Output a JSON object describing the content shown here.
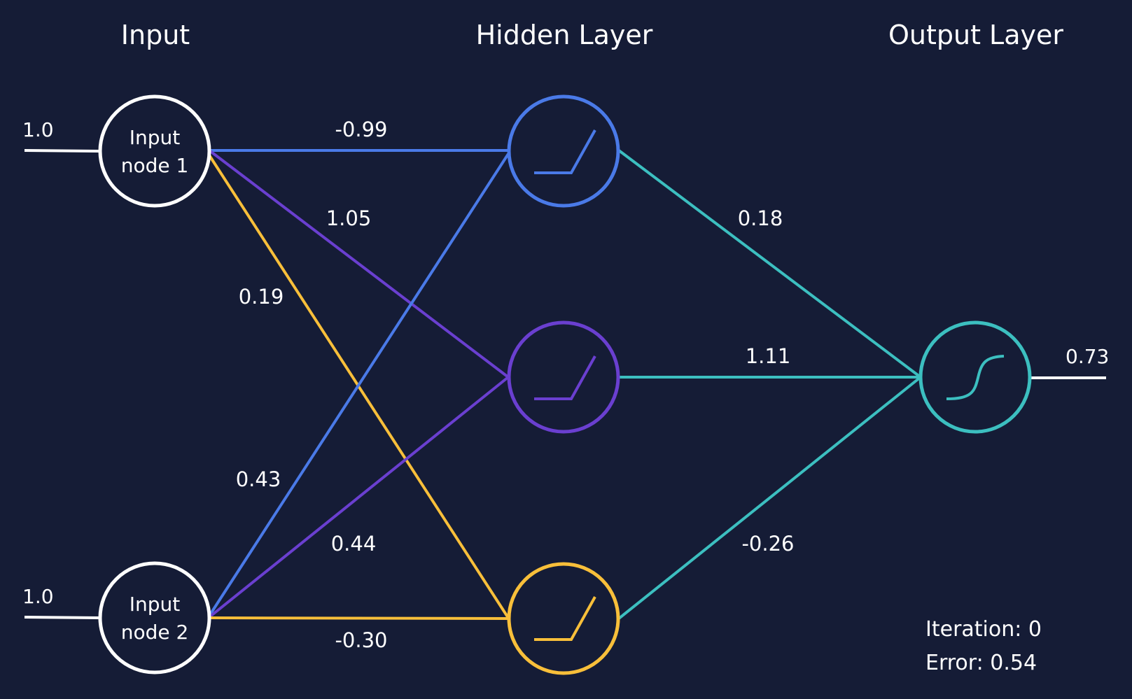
{
  "layers": {
    "input": "Input",
    "hidden": "Hidden Layer",
    "output": "Output Layer"
  },
  "input_nodes": [
    {
      "label_line1": "Input",
      "label_line2": "node 1",
      "value": "1.0"
    },
    {
      "label_line1": "Input",
      "label_line2": "node 2",
      "value": "1.0"
    }
  ],
  "hidden_nodes": [
    {
      "activation": "relu-icon",
      "color": "#4a7ae8"
    },
    {
      "activation": "relu-icon",
      "color": "#6a3fd0"
    },
    {
      "activation": "relu-icon",
      "color": "#f8bf3a"
    }
  ],
  "output_node": {
    "activation": "sigmoid-icon",
    "color": "#3cbfc0",
    "value": "0.73"
  },
  "weights": {
    "in1_h1": "-0.99",
    "in1_h2": "1.05",
    "in1_h3": "0.19",
    "in2_h1": "0.43",
    "in2_h2": "0.44",
    "in2_h3": "-0.30",
    "h1_out": "0.18",
    "h2_out": "1.11",
    "h3_out": "-0.26"
  },
  "status": {
    "iteration": "Iteration: 0",
    "error": "Error: 0.54"
  },
  "colors": {
    "background": "#151c36",
    "node_input": "#ffffff",
    "edge_h1": "#4a7ae8",
    "edge_h2": "#6a3fd0",
    "edge_h3": "#f8bf3a",
    "edge_out": "#3cbfc0"
  }
}
